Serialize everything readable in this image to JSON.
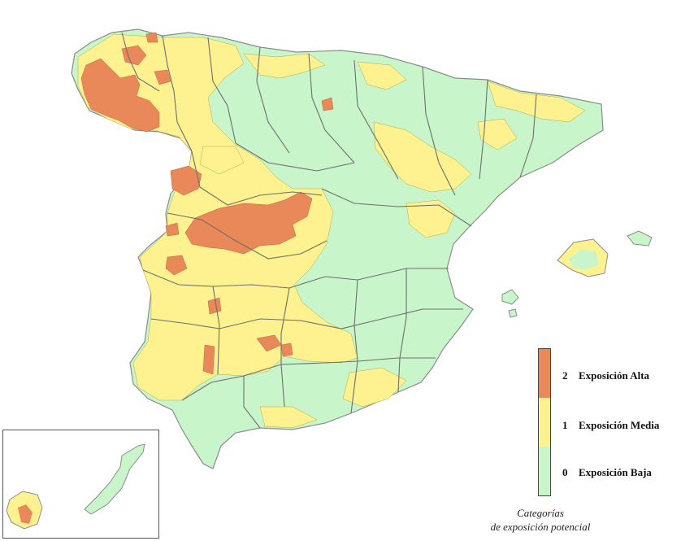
{
  "colors": {
    "alta": "#e9895a",
    "media": "#fdf28f",
    "baja": "#c8f5c9",
    "border": "#6e6e6e",
    "coast": "#8c8c8c"
  },
  "legend": {
    "items": [
      {
        "num": "2",
        "label": "Exposición Alta",
        "color": "#e9895a"
      },
      {
        "num": "1",
        "label": "Exposición Media",
        "color": "#fdf28f"
      },
      {
        "num": "0",
        "label": "Exposición Baja",
        "color": "#c8f5c9"
      }
    ],
    "caption_line1": "Categorías",
    "caption_line2": "de exposición potencial"
  }
}
